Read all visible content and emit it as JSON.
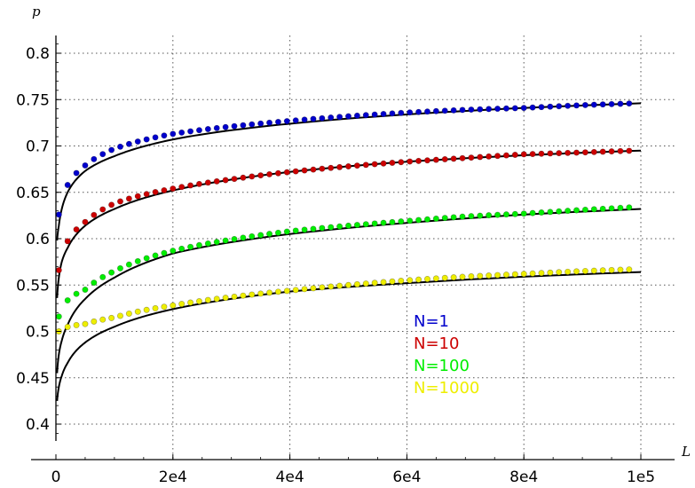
{
  "chart_data": {
    "type": "scatter",
    "title": "",
    "xlabel": "L",
    "ylabel": "p",
    "xlim": [
      0,
      100000
    ],
    "ylim": [
      0.38,
      0.82
    ],
    "grid": true,
    "grid_style": "dotted",
    "x_ticks": [
      0,
      20000,
      40000,
      60000,
      80000,
      100000
    ],
    "x_tick_labels": [
      "0",
      "2e4",
      "4e4",
      "6e4",
      "8e4",
      "1e5"
    ],
    "y_ticks": [
      0.4,
      0.45,
      0.5,
      0.55,
      0.6,
      0.65,
      0.7,
      0.75,
      0.8
    ],
    "y_tick_labels": [
      "0.4",
      "0.45",
      "0.5",
      "0.55",
      "0.6",
      "0.65",
      "0.7",
      "0.75",
      "0.8"
    ],
    "legend_position": "center-right",
    "fit_color": "#000000",
    "series": [
      {
        "name": "N=1",
        "color": "#0000cc",
        "x": [
          500,
          5000,
          10000,
          20000,
          30000,
          40000,
          50000,
          60000,
          70000,
          80000,
          90000,
          99000
        ],
        "y": [
          0.626,
          0.679,
          0.697,
          0.713,
          0.721,
          0.727,
          0.732,
          0.736,
          0.739,
          0.741,
          0.744,
          0.746
        ],
        "fit_x": [
          200,
          500,
          1000,
          2000,
          5000,
          10000,
          20000,
          40000,
          60000,
          80000,
          100000
        ],
        "fit_y": [
          0.598,
          0.614,
          0.632,
          0.65,
          0.673,
          0.689,
          0.707,
          0.724,
          0.734,
          0.741,
          0.746
        ]
      },
      {
        "name": "N=10",
        "color": "#cc0000",
        "x": [
          500,
          5000,
          10000,
          20000,
          30000,
          40000,
          50000,
          60000,
          70000,
          80000,
          90000,
          99000
        ],
        "y": [
          0.566,
          0.618,
          0.638,
          0.654,
          0.664,
          0.672,
          0.678,
          0.683,
          0.687,
          0.691,
          0.693,
          0.695
        ],
        "fit_x": [
          200,
          500,
          1000,
          2000,
          5000,
          10000,
          20000,
          40000,
          60000,
          80000,
          100000
        ],
        "fit_y": [
          0.536,
          0.558,
          0.575,
          0.59,
          0.614,
          0.632,
          0.652,
          0.672,
          0.683,
          0.69,
          0.695
        ]
      },
      {
        "name": "N=100",
        "color": "#00ee00",
        "x": [
          500,
          5000,
          10000,
          20000,
          30000,
          40000,
          50000,
          60000,
          70000,
          80000,
          90000,
          99000
        ],
        "y": [
          0.516,
          0.545,
          0.565,
          0.587,
          0.599,
          0.608,
          0.614,
          0.619,
          0.624,
          0.627,
          0.631,
          0.634
        ],
        "fit_x": [
          200,
          500,
          1000,
          2000,
          5000,
          10000,
          20000,
          40000,
          60000,
          80000,
          100000
        ],
        "fit_y": [
          0.455,
          0.475,
          0.49,
          0.507,
          0.535,
          0.558,
          0.584,
          0.605,
          0.617,
          0.626,
          0.632
        ]
      },
      {
        "name": "N=1000",
        "color": "#eeee00",
        "x": [
          500,
          5000,
          10000,
          20000,
          30000,
          40000,
          50000,
          60000,
          70000,
          80000,
          90000,
          99000
        ],
        "y": [
          0.5,
          0.508,
          0.515,
          0.528,
          0.537,
          0.544,
          0.55,
          0.555,
          0.559,
          0.562,
          0.565,
          0.567
        ],
        "fit_x": [
          200,
          500,
          1000,
          2000,
          5000,
          10000,
          20000,
          40000,
          60000,
          80000,
          100000
        ],
        "fit_y": [
          0.425,
          0.44,
          0.452,
          0.466,
          0.488,
          0.505,
          0.524,
          0.543,
          0.552,
          0.559,
          0.564
        ]
      }
    ]
  }
}
